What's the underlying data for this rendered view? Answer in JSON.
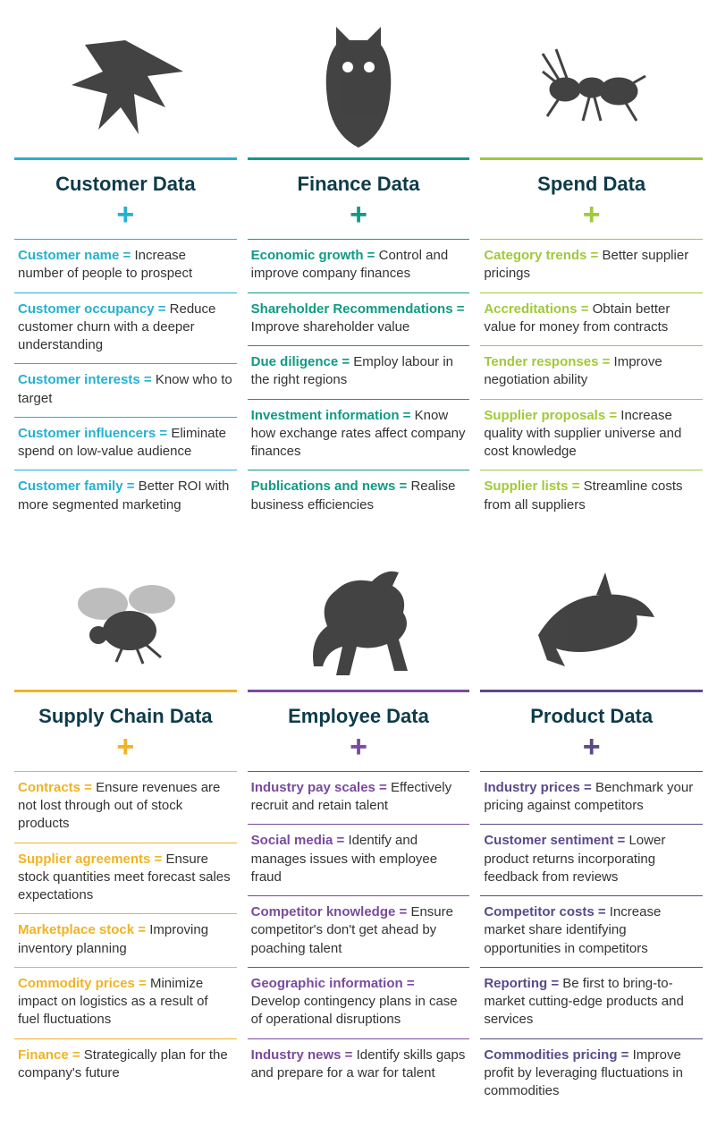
{
  "layout": {
    "columns_per_row": 3,
    "page_background": "#ffffff",
    "body_text_color": "#333333",
    "title_color": "#0e3b4a",
    "title_fontsize_pt": 17,
    "row_fontsize_pt": 11,
    "plus_symbol": "+"
  },
  "columns": [
    {
      "id": "customer",
      "title": "Customer Data",
      "accent": "#24b1cf",
      "animal_label": "eagle",
      "items": [
        {
          "term": "Customer name",
          "desc": "Increase number of people to prospect"
        },
        {
          "term": "Customer occupancy",
          "desc": "Reduce customer churn with a deeper understanding"
        },
        {
          "term": "Customer interests",
          "desc": "Know who to target"
        },
        {
          "term": "Customer influencers",
          "desc": "Eliminate spend on low-value audience"
        },
        {
          "term": "Customer family",
          "desc": "Better ROI with more segmented marketing"
        }
      ]
    },
    {
      "id": "finance",
      "title": "Finance Data",
      "accent": "#109a84",
      "animal_label": "owl",
      "items": [
        {
          "term": "Economic growth",
          "desc": "Control and improve company finances"
        },
        {
          "term": "Shareholder Recommendations",
          "desc": "Improve shareholder value"
        },
        {
          "term": "Due diligence",
          "desc": "Employ labour in the right regions"
        },
        {
          "term": "Investment information",
          "desc": "Know how exchange rates affect company finances"
        },
        {
          "term": "Publications and news",
          "desc": "Realise business efficiencies"
        }
      ]
    },
    {
      "id": "spend",
      "title": "Spend Data",
      "accent": "#a1c93a",
      "animal_label": "ant",
      "items": [
        {
          "term": "Category trends",
          "desc": "Better supplier pricings"
        },
        {
          "term": "Accreditations",
          "desc": "Obtain better value for money from contracts"
        },
        {
          "term": "Tender responses",
          "desc": "Improve negotiation ability"
        },
        {
          "term": "Supplier proposals",
          "desc": "Increase quality with supplier universe and cost knowledge"
        },
        {
          "term": "Supplier lists",
          "desc": "Streamline costs from all suppliers"
        }
      ]
    },
    {
      "id": "supplychain",
      "title": "Supply Chain Data",
      "accent": "#f0b323",
      "animal_label": "bee",
      "items": [
        {
          "term": "Contracts",
          "desc": "Ensure revenues are not lost through out of stock products"
        },
        {
          "term": "Supplier agreements",
          "desc": "Ensure stock quantities meet forecast sales expectations"
        },
        {
          "term": "Marketplace stock",
          "desc": "Improving inventory planning"
        },
        {
          "term": "Commodity prices",
          "desc": "Minimize impact on logistics as a result of fuel fluctuations"
        },
        {
          "term": "Finance",
          "desc": "Strategically plan for the company's future"
        }
      ]
    },
    {
      "id": "employee",
      "title": "Employee Data",
      "accent": "#7a4b9e",
      "animal_label": "horse",
      "items": [
        {
          "term": "Industry pay scales",
          "desc": "Effectively recruit and retain talent"
        },
        {
          "term": "Social media",
          "desc": "Identify and manages issues with employee fraud"
        },
        {
          "term": "Competitor knowledge",
          "desc": "Ensure competitor's don't get ahead by poaching talent"
        },
        {
          "term": "Geographic information",
          "desc": "Develop contingency plans in case of operational disruptions"
        },
        {
          "term": "Industry news",
          "desc": "Identify skills gaps and prepare for a war for talent"
        }
      ]
    },
    {
      "id": "product",
      "title": "Product Data",
      "accent": "#5a4a8a",
      "animal_label": "dolphin",
      "items": [
        {
          "term": "Industry prices",
          "desc": "Benchmark your pricing against competitors"
        },
        {
          "term": "Customer sentiment",
          "desc": "Lower product returns incorporating feedback from reviews"
        },
        {
          "term": "Competitor costs",
          "desc": "Increase market share identifying opportunities in competitors"
        },
        {
          "term": "Reporting",
          "desc": "Be first to bring-to-market cutting-edge products and services"
        },
        {
          "term": "Commodities pricing",
          "desc": "Improve profit by leveraging fluctuations in commodities"
        }
      ]
    }
  ]
}
